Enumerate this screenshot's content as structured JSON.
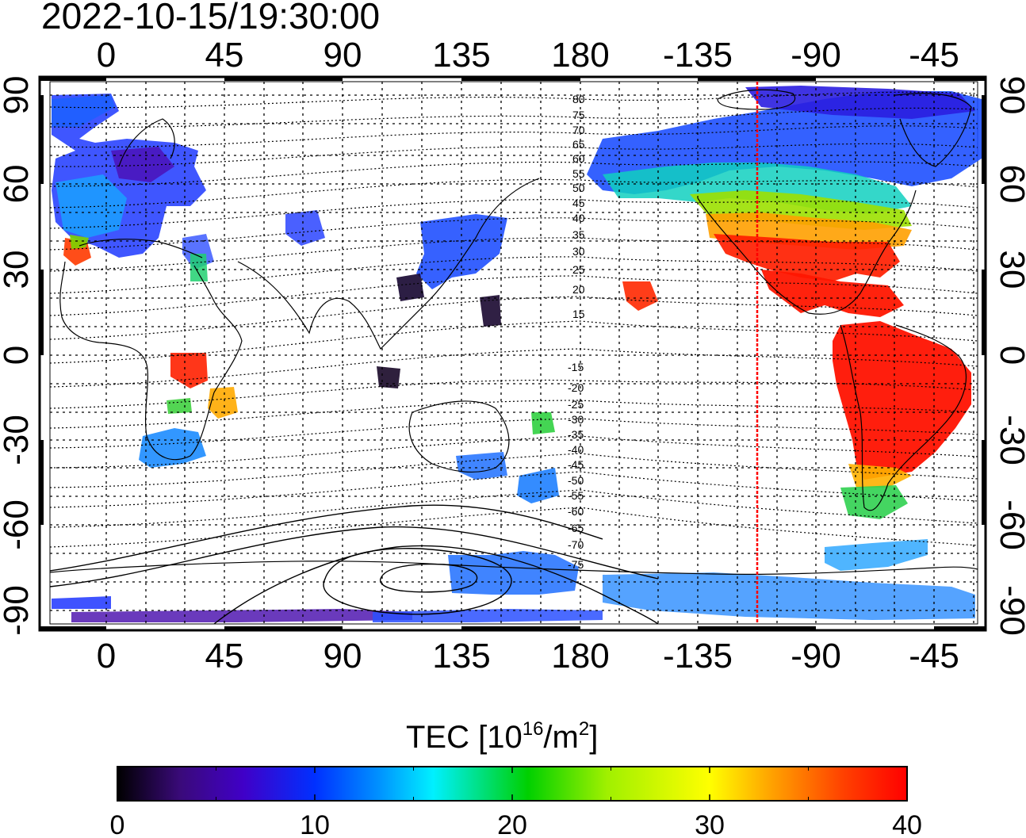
{
  "title": "2022-10-15/19:30:00",
  "colorbar": {
    "label_main": "TEC  [10",
    "label_exp": "16",
    "label_mid": "/m",
    "label_exp2": "2",
    "label_end": "]",
    "min": 0,
    "max": 40,
    "tick_values": [
      0,
      10,
      20,
      30,
      40
    ],
    "tick_labels": [
      "0",
      "10",
      "20",
      "30",
      "40"
    ],
    "stops": [
      "#000000",
      "#3a0a7a",
      "#4000c8",
      "#0030ff",
      "#0090ff",
      "#00f0ff",
      "#00e080",
      "#00d000",
      "#a0f000",
      "#ffff00",
      "#ffa000",
      "#ff4000",
      "#ff0000"
    ]
  },
  "map": {
    "lon_ticks": [
      "0",
      "45",
      "90",
      "135",
      "180",
      "-135",
      "-90",
      "-45"
    ],
    "lat_ticks": [
      "90",
      "60",
      "30",
      "0",
      "-30",
      "-60",
      "-90"
    ],
    "terminator_color": "#ff0000",
    "magnetic_lat_labels": [
      "80",
      "75",
      "70",
      "65",
      "60",
      "55",
      "50",
      "45",
      "40",
      "35",
      "30",
      "25",
      "20",
      "15",
      "-15",
      "-20",
      "-25",
      "-30",
      "-35",
      "-40",
      "-45",
      "-50",
      "-55",
      "-60",
      "-65",
      "-70",
      "-75"
    ]
  }
}
